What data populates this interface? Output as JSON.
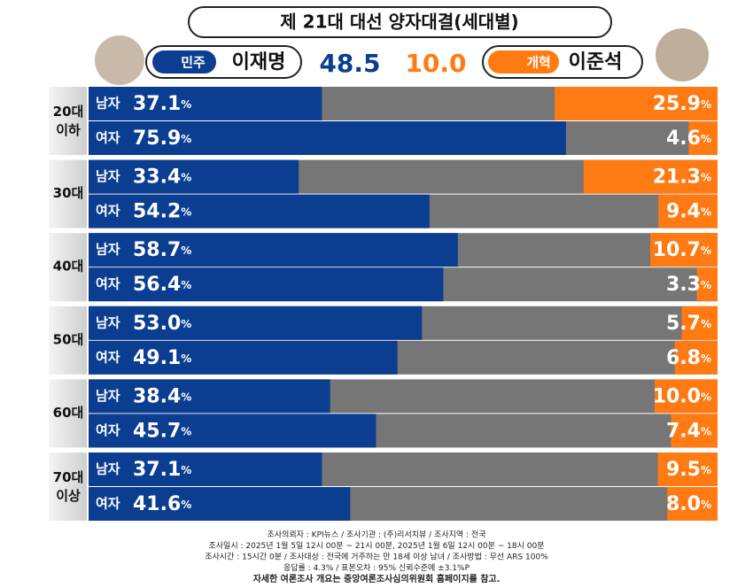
{
  "chart_data": {
    "type": "diverging-bar",
    "title": "제 21대 대선 양자대결(세대별)",
    "groups": [
      "20대 이하",
      "30대",
      "40대",
      "50대",
      "60대",
      "70대 이상"
    ],
    "categories": [
      "남자",
      "여자",
      "남자",
      "여자",
      "남자",
      "여자",
      "남자",
      "여자",
      "남자",
      "여자",
      "남자",
      "여자"
    ],
    "xlim": [
      0,
      100
    ],
    "remainder_color": "#767676",
    "series": [
      {
        "name": "이재명",
        "party": "민주",
        "color": "#0b3d91",
        "total": 48.5,
        "values": [
          37.1,
          75.9,
          33.4,
          54.2,
          58.7,
          56.4,
          53.0,
          49.1,
          38.4,
          45.7,
          37.1,
          41.6
        ],
        "value_labels": [
          "37.1%",
          "75.9%",
          "33.4%",
          "54.2%",
          "58.7%",
          "56.4%",
          "53.0%",
          "49.1%",
          "38.4%",
          "45.7%",
          "37.1%",
          "41.6%"
        ]
      },
      {
        "name": "이준석",
        "party": "개혁",
        "color": "#ff7a12",
        "total": {
          "value": 10,
          "label": "10.0"
        },
        "values": [
          25.9,
          4.6,
          21.3,
          9.4,
          10.7,
          3.3,
          5.7,
          6.8,
          10.0,
          7.4,
          9.5,
          8.0
        ],
        "value_labels": [
          "25.9%",
          "4.6%",
          "21.3%",
          "9.4%",
          "10.7%",
          "3.3%",
          "5.7%",
          "6.8%",
          "10.0%",
          "7.4%",
          "9.5%",
          "8.0%"
        ]
      }
    ],
    "notes": [
      "조사의뢰자 : KPI뉴스 / 조사기관 : (주)리서치뷰 / 조사지역 : 전국",
      "조사일시 : 2025년 1월 5일 12시 00분 ~ 21시 00분, 2025년 1월 6일 12시 00분 ~ 18시 00분",
      "조사시간 : 15시간 0분 / 조사대상 : 전국에 거주하는 만 18세 이상 남녀 / 조사방법 : 무선 ARS 100%",
      "응답률 : 4.3% / 표본오차 : 95% 신뢰수준에 ±3.1%P",
      "자세한 여론조사 개요는 중앙여론조사심의위원회 홈페이지를 참고."
    ]
  }
}
